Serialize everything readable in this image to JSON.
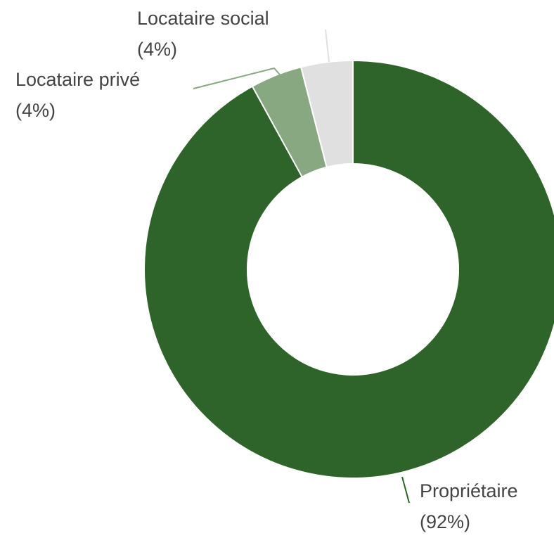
{
  "chart_data": {
    "type": "donut",
    "categories": [
      "Propriétaire",
      "Locataire privé",
      "Locataire social"
    ],
    "values": [
      92,
      4,
      4
    ],
    "value_labels": [
      "(92%)",
      "(4%)",
      "(4%)"
    ],
    "colors": [
      "#2e6429",
      "#88a882",
      "#e0e0e0"
    ]
  }
}
